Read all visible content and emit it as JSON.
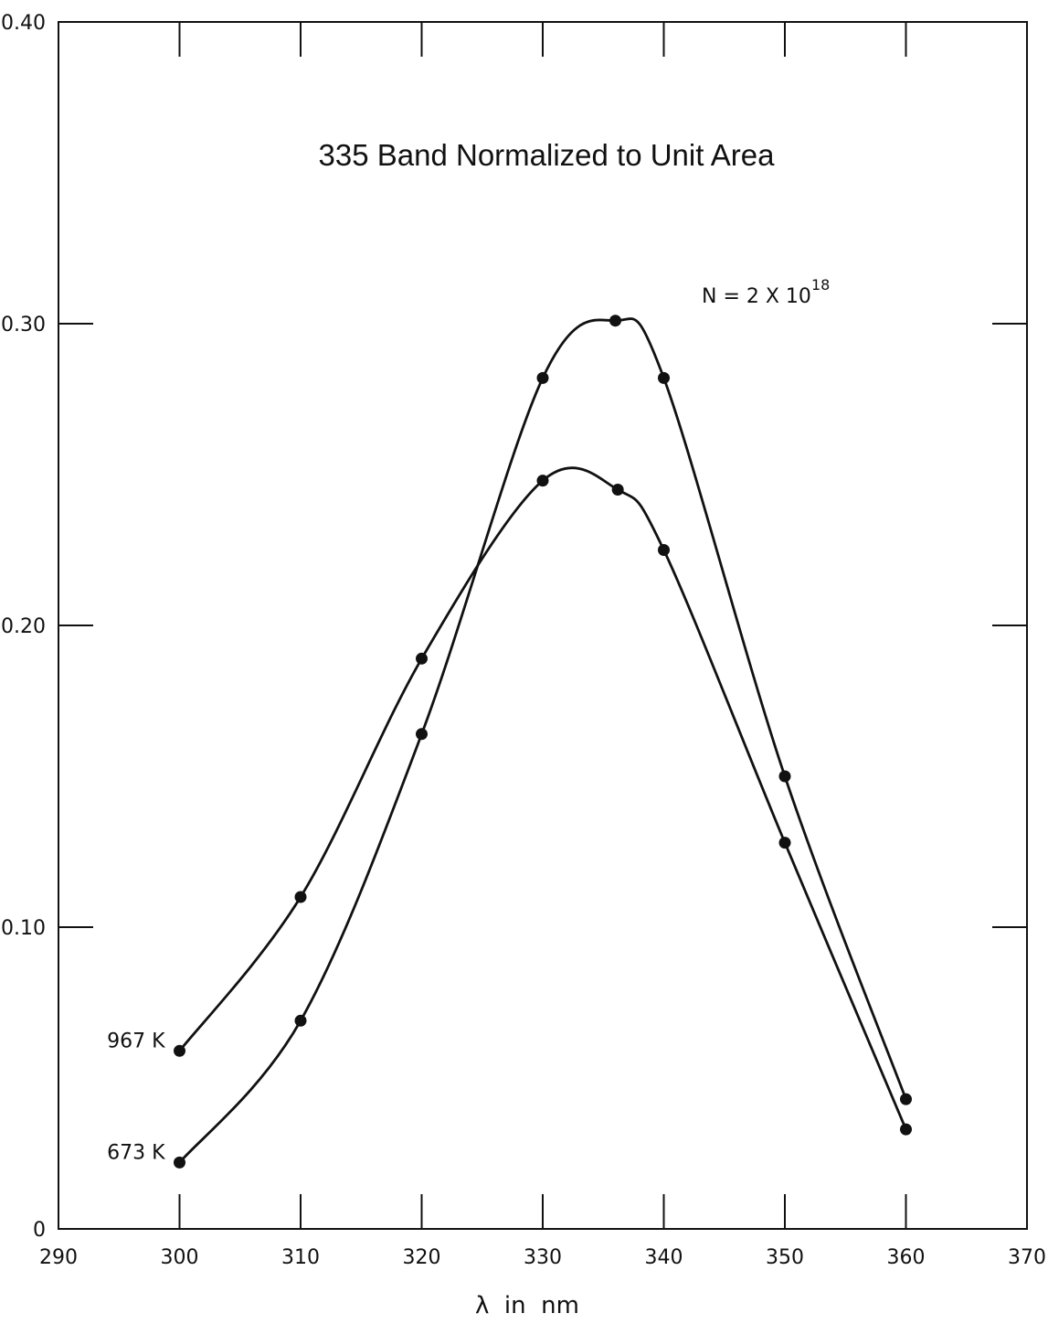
{
  "chart_data": {
    "type": "line",
    "title": "335 Band Normalized to Unit Area",
    "annotation": {
      "base": "N = 2 X 10",
      "exponent": "18"
    },
    "xlabel": "λ  in  nm",
    "ylabel": "",
    "xlim": [
      290,
      370
    ],
    "ylim": [
      0,
      0.4
    ],
    "x_ticks": [
      290,
      300,
      310,
      320,
      330,
      340,
      350,
      360,
      370
    ],
    "y_ticks": [
      0,
      0.1,
      0.2,
      0.3,
      0.4
    ],
    "x_tick_labels": [
      "290",
      "300",
      "310",
      "320",
      "330",
      "340",
      "350",
      "360",
      "370"
    ],
    "y_tick_labels": [
      "0",
      "0.10",
      "0.20",
      "0.30",
      "0.40"
    ],
    "grid": false,
    "series": [
      {
        "name": "967 K",
        "x": [
          300,
          310,
          320,
          330,
          336.2,
          340,
          350,
          360
        ],
        "y": [
          0.059,
          0.11,
          0.189,
          0.248,
          0.245,
          0.225,
          0.128,
          0.033
        ]
      },
      {
        "name": "673 K",
        "x": [
          300,
          310,
          320,
          330,
          336,
          340,
          350,
          360
        ],
        "y": [
          0.022,
          0.069,
          0.164,
          0.282,
          0.301,
          0.282,
          0.15,
          0.043
        ]
      }
    ]
  }
}
